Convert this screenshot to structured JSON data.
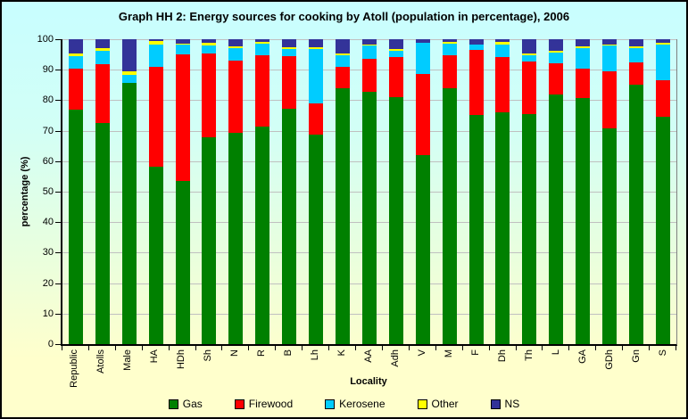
{
  "chart_data": {
    "type": "bar",
    "stacked": true,
    "title": "Graph HH 2: Energy sources for cooking by Atoll (population in percentage), 2006",
    "xlabel": "Locality",
    "ylabel": "percentage (%)",
    "ylim": [
      0,
      100
    ],
    "ytick_interval": 10,
    "ytick_labels": [
      "0",
      "10",
      "20",
      "30",
      "40",
      "50",
      "60",
      "70",
      "80",
      "90",
      "100"
    ],
    "grid": true,
    "legend_position": "bottom",
    "categories": [
      "Republic",
      "Atolls",
      "Male",
      "HA",
      "HDh",
      "Sh",
      "N",
      "R",
      "B",
      "Lh",
      "K",
      "AA",
      "Adh",
      "V",
      "M",
      "F",
      "Dh",
      "Th",
      "L",
      "GA",
      "GDh",
      "Gn",
      "S"
    ],
    "series": [
      {
        "name": "Gas",
        "color": "#008000",
        "values": [
          77.0,
          72.5,
          85.7,
          58.1,
          53.4,
          67.8,
          69.2,
          71.3,
          77.1,
          68.8,
          83.9,
          82.7,
          81.1,
          62.0,
          84.0,
          75.2,
          76.1,
          75.4,
          81.8,
          80.8,
          70.8,
          85.0,
          74.6
        ]
      },
      {
        "name": "Firewood",
        "color": "#FF0000",
        "values": [
          13.4,
          19.4,
          0.0,
          32.8,
          41.7,
          27.5,
          23.8,
          23.4,
          17.3,
          10.1,
          7.1,
          10.8,
          13.1,
          26.7,
          10.8,
          21.3,
          18.1,
          17.4,
          10.4,
          9.5,
          18.8,
          7.5,
          12.0
        ]
      },
      {
        "name": "Kerosene",
        "color": "#00CCFF",
        "values": [
          4.1,
          4.4,
          2.6,
          7.5,
          3.1,
          2.7,
          4.2,
          3.9,
          2.5,
          18.0,
          3.7,
          4.4,
          1.9,
          10.0,
          3.8,
          1.7,
          4.1,
          1.9,
          3.4,
          6.8,
          8.3,
          4.6,
          11.7
        ]
      },
      {
        "name": "Other",
        "color": "#FFFF00",
        "values": [
          0.8,
          0.8,
          1.2,
          0.9,
          0.4,
          0.7,
          0.4,
          0.5,
          0.4,
          0.6,
          0.7,
          0.4,
          0.7,
          0.0,
          0.6,
          0.0,
          0.7,
          0.7,
          0.6,
          0.5,
          0.4,
          0.5,
          0.6
        ]
      },
      {
        "name": "NS",
        "color": "#333399",
        "values": [
          4.7,
          2.9,
          10.5,
          0.7,
          1.4,
          1.3,
          2.4,
          0.9,
          2.7,
          2.5,
          4.6,
          1.7,
          3.2,
          1.3,
          0.8,
          1.8,
          1.0,
          4.6,
          3.8,
          2.4,
          1.7,
          2.4,
          1.1
        ]
      }
    ]
  },
  "colors": {
    "background_top": "#CCFFFF",
    "background_bottom": "#FFFFCC",
    "gridline": "#C0C0C0",
    "axis": "#000000",
    "outer_border": "#000000",
    "plot_right_border": "#808080"
  }
}
